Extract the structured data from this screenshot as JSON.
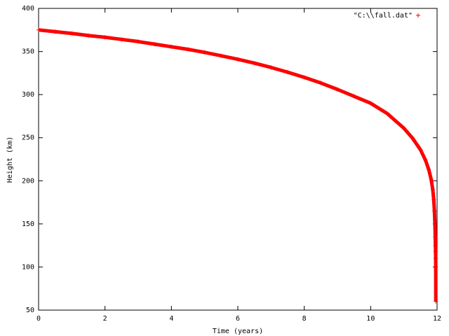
{
  "chart_data": {
    "type": "scatter",
    "xlabel": "Time (years)",
    "ylabel": "Height (km)",
    "x": [
      0,
      0.5,
      1,
      1.5,
      2,
      2.5,
      3,
      3.5,
      4,
      4.5,
      5,
      5.5,
      6,
      6.5,
      7,
      7.5,
      8,
      8.5,
      9,
      9.5,
      10,
      10.5,
      11,
      11.25,
      11.5,
      11.65,
      11.75,
      11.82,
      11.87,
      11.9,
      11.92,
      11.935,
      11.945,
      11.95,
      11.955,
      11.958,
      11.96,
      11.962
    ],
    "series": [
      {
        "name": "\"C:\\\\fall.dat\"",
        "color": "#ff0000",
        "values": [
          375,
          373,
          371,
          368.5,
          366.5,
          364,
          361.5,
          358.5,
          355.5,
          352.5,
          349,
          345,
          341,
          336.5,
          331.5,
          326,
          320,
          313.5,
          306,
          298,
          290,
          278,
          261,
          250,
          236,
          224,
          213,
          202,
          190,
          178,
          165,
          150,
          135,
          125,
          118,
          110,
          100,
          60
        ]
      }
    ],
    "xlim": [
      0,
      12
    ],
    "xticks": [
      0,
      2,
      4,
      6,
      8,
      10,
      12
    ],
    "ylim": [
      50,
      400
    ],
    "yticks": [
      50,
      100,
      150,
      200,
      250,
      300,
      350,
      400
    ],
    "legend": "top-right"
  }
}
